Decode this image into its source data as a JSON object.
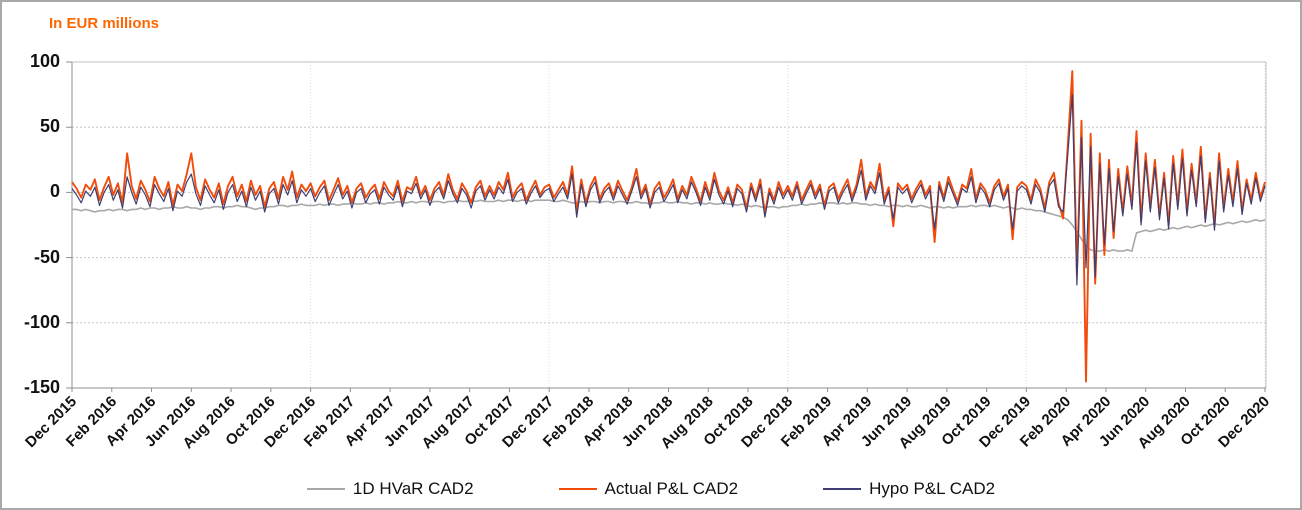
{
  "panel": {
    "title": "In EUR millions"
  },
  "legend": [
    {
      "label": "1D HVaR CAD2",
      "color": "#a8a8a8"
    },
    {
      "label": "Actual P&L CAD2",
      "color": "#f14c0c"
    },
    {
      "label": "Hypo P&L CAD2",
      "color": "#3e3e72"
    }
  ],
  "chart_data": {
    "type": "line",
    "title": "In EUR millions",
    "xlabel": "",
    "ylabel": "In EUR millions",
    "ylim": [
      -150,
      100
    ],
    "y_ticks": [
      100,
      50,
      0,
      -50,
      -100,
      -150
    ],
    "x_tick_labels": [
      "Dec 2015",
      "Feb 2016",
      "Apr 2016",
      "Jun 2016",
      "Aug 2016",
      "Oct 2016",
      "Dec 2016",
      "Feb 2017",
      "Apr 2017",
      "Jun 2017",
      "Aug 2017",
      "Oct 2017",
      "Dec 2017",
      "Feb 2018",
      "Apr 2018",
      "Jun 2018",
      "Aug 2018",
      "Oct 2018",
      "Dec 2018",
      "Feb 2019",
      "Apr 2019",
      "Jun 2019",
      "Aug 2019",
      "Oct 2019",
      "Dec 2019",
      "Feb 2020",
      "Apr 2020",
      "Jun 2020",
      "Aug 2020",
      "Oct 2020",
      "Dec 2020"
    ],
    "x_unit": "weekly samples from Dec 2015 to Dec 2020",
    "grid": "horizontal dotted gridlines every 50; faint dotted vertical gridlines each December",
    "legend_position": "bottom",
    "series": [
      {
        "name": "1D HVaR CAD2",
        "color": "#a8a8a8",
        "width": 1.6,
        "values": [
          -13,
          -13,
          -14,
          -13,
          -14,
          -15,
          -14,
          -14,
          -13,
          -14,
          -13,
          -13,
          -14,
          -13,
          -13,
          -12,
          -13,
          -12,
          -12,
          -13,
          -12,
          -12,
          -11,
          -12,
          -12,
          -11,
          -12,
          -12,
          -13,
          -12,
          -12,
          -11,
          -11,
          -12,
          -11,
          -11,
          -10,
          -11,
          -11,
          -12,
          -13,
          -12,
          -12,
          -11,
          -11,
          -10,
          -10,
          -11,
          -10,
          -10,
          -9,
          -10,
          -10,
          -10,
          -9,
          -10,
          -9,
          -9,
          -10,
          -9,
          -9,
          -8,
          -9,
          -9,
          -8,
          -9,
          -8,
          -8,
          -9,
          -8,
          -8,
          -7,
          -8,
          -8,
          -7,
          -8,
          -7,
          -7,
          -8,
          -7,
          -7,
          -8,
          -7,
          -7,
          -6,
          -7,
          -7,
          -6,
          -7,
          -6,
          -7,
          -7,
          -7,
          -6,
          -7,
          -6,
          -6,
          -7,
          -6,
          -6,
          -7,
          -6,
          -6,
          -6,
          -6,
          -7,
          -7,
          -6,
          -7,
          -8,
          -8,
          -7,
          -8,
          -7,
          -7,
          -8,
          -7,
          -7,
          -8,
          -7,
          -7,
          -8,
          -8,
          -7,
          -8,
          -8,
          -9,
          -8,
          -8,
          -7,
          -8,
          -8,
          -7,
          -8,
          -8,
          -9,
          -8,
          -8,
          -9,
          -8,
          -9,
          -9,
          -8,
          -9,
          -9,
          -10,
          -9,
          -10,
          -11,
          -10,
          -11,
          -12,
          -11,
          -11,
          -12,
          -11,
          -11,
          -10,
          -10,
          -9,
          -10,
          -9,
          -9,
          -8,
          -9,
          -8,
          -8,
          -9,
          -8,
          -9,
          -8,
          -8,
          -9,
          -9,
          -10,
          -9,
          -10,
          -10,
          -11,
          -10,
          -10,
          -11,
          -10,
          -11,
          -11,
          -10,
          -11,
          -12,
          -11,
          -11,
          -12,
          -11,
          -12,
          -11,
          -11,
          -11,
          -10,
          -11,
          -10,
          -10,
          -11,
          -10,
          -11,
          -12,
          -11,
          -12,
          -13,
          -12,
          -13,
          -13,
          -14,
          -14,
          -15,
          -16,
          -17,
          -18,
          -19,
          -21,
          -25,
          -30,
          -36,
          -41,
          -44,
          -45,
          -45,
          -44,
          -45,
          -44,
          -45,
          -45,
          -44,
          -45,
          -31,
          -30,
          -29,
          -30,
          -29,
          -28,
          -29,
          -28,
          -27,
          -28,
          -27,
          -26,
          -27,
          -26,
          -25,
          -26,
          -25,
          -24,
          -25,
          -24,
          -23,
          -24,
          -23,
          -22,
          -23,
          -22,
          -21,
          -22,
          -21
        ]
      },
      {
        "name": "Actual P&L CAD2",
        "color": "#f14c0c",
        "width": 1.9,
        "values": [
          8,
          3,
          -4,
          6,
          2,
          10,
          -6,
          4,
          12,
          -2,
          7,
          -8,
          30,
          5,
          -5,
          9,
          2,
          -7,
          12,
          3,
          -3,
          8,
          -10,
          6,
          1,
          14,
          30,
          4,
          -6,
          10,
          2,
          -4,
          7,
          -9,
          5,
          12,
          -3,
          6,
          -7,
          9,
          -2,
          5,
          -11,
          3,
          8,
          -5,
          12,
          2,
          16,
          -4,
          6,
          1,
          7,
          -3,
          4,
          9,
          -6,
          2,
          11,
          -2,
          5,
          -8,
          3,
          7,
          -4,
          2,
          6,
          -5,
          8,
          1,
          -3,
          9,
          -7,
          4,
          2,
          12,
          -2,
          5,
          -6,
          3,
          8,
          -2,
          14,
          2,
          -5,
          7,
          1,
          -8,
          4,
          9,
          -3,
          5,
          -2,
          8,
          2,
          15,
          -4,
          3,
          7,
          -6,
          2,
          9,
          -2,
          4,
          6,
          -4,
          2,
          8,
          -2,
          20,
          -15,
          10,
          -8,
          5,
          12,
          -5,
          3,
          7,
          -3,
          9,
          1,
          -6,
          4,
          18,
          -2,
          6,
          -9,
          3,
          8,
          -4,
          2,
          10,
          -5,
          5,
          -2,
          12,
          3,
          -7,
          8,
          -3,
          15,
          1,
          -6,
          4,
          -8,
          6,
          2,
          -12,
          7,
          -4,
          10,
          -16,
          3,
          -6,
          8,
          -2,
          5,
          -3,
          8,
          -6,
          2,
          9,
          -2,
          6,
          -10,
          4,
          7,
          -5,
          3,
          10,
          -4,
          6,
          25,
          -3,
          8,
          2,
          22,
          -6,
          4,
          -26,
          7,
          2,
          6,
          -5,
          3,
          9,
          -2,
          5,
          -38,
          8,
          -4,
          12,
          2,
          -7,
          6,
          3,
          18,
          -5,
          7,
          2,
          -8,
          5,
          10,
          -3,
          6,
          -36,
          4,
          8,
          5,
          -6,
          10,
          3,
          -12,
          8,
          15,
          -8,
          -20,
          35,
          93,
          -63,
          55,
          -145,
          45,
          -70,
          30,
          -48,
          25,
          -35,
          18,
          -15,
          20,
          -10,
          47,
          -22,
          30,
          -12,
          25,
          -18,
          15,
          -25,
          28,
          -10,
          33,
          -15,
          22,
          -8,
          35,
          -20,
          15,
          -26,
          30,
          -12,
          18,
          -8,
          24,
          -14,
          10,
          -6,
          15,
          -4,
          8
        ]
      },
      {
        "name": "Hypo P&L CAD2",
        "color": "#3e3e72",
        "width": 1.2,
        "values": [
          3,
          -2,
          -8,
          1,
          -3,
          4,
          -10,
          0,
          6,
          -6,
          2,
          -12,
          12,
          0,
          -9,
          4,
          -2,
          -11,
          6,
          -1,
          -7,
          3,
          -14,
          1,
          -3,
          8,
          14,
          -1,
          -10,
          5,
          -2,
          -8,
          2,
          -13,
          0,
          6,
          -7,
          1,
          -11,
          4,
          -6,
          1,
          -15,
          -1,
          3,
          -9,
          6,
          -2,
          9,
          -8,
          2,
          -3,
          3,
          -7,
          0,
          5,
          -10,
          -2,
          6,
          -5,
          1,
          -12,
          0,
          3,
          -8,
          -1,
          2,
          -9,
          4,
          -2,
          -6,
          5,
          -11,
          1,
          -1,
          7,
          -5,
          2,
          -10,
          0,
          4,
          -5,
          9,
          -1,
          -8,
          3,
          -2,
          -12,
          1,
          5,
          -6,
          2,
          -5,
          4,
          -1,
          10,
          -7,
          0,
          3,
          -9,
          -1,
          5,
          -4,
          1,
          3,
          -7,
          -1,
          4,
          -5,
          14,
          -19,
          6,
          -11,
          2,
          8,
          -8,
          0,
          4,
          -6,
          5,
          -2,
          -9,
          1,
          12,
          -5,
          3,
          -12,
          0,
          4,
          -7,
          -1,
          6,
          -8,
          2,
          -5,
          8,
          0,
          -10,
          4,
          -6,
          10,
          -2,
          -9,
          1,
          -11,
          3,
          -1,
          -15,
          4,
          -7,
          6,
          -19,
          0,
          -9,
          4,
          -5,
          2,
          -6,
          5,
          -9,
          -1,
          6,
          -5,
          3,
          -13,
          1,
          4,
          -8,
          0,
          6,
          -7,
          3,
          17,
          -6,
          5,
          -1,
          15,
          -9,
          1,
          -20,
          4,
          -1,
          3,
          -8,
          0,
          6,
          -5,
          2,
          -28,
          5,
          -7,
          8,
          -1,
          -10,
          3,
          0,
          12,
          -8,
          4,
          -1,
          -11,
          2,
          7,
          -6,
          3,
          -28,
          1,
          5,
          2,
          -9,
          6,
          0,
          -15,
          5,
          10,
          -11,
          -15,
          28,
          75,
          -71,
          42,
          -58,
          35,
          -65,
          22,
          -40,
          18,
          -30,
          12,
          -18,
          14,
          -13,
          38,
          -25,
          24,
          -15,
          19,
          -21,
          11,
          -28,
          22,
          -13,
          26,
          -18,
          17,
          -11,
          28,
          -23,
          11,
          -29,
          24,
          -15,
          13,
          -11,
          18,
          -17,
          7,
          -9,
          11,
          -7,
          5
        ]
      }
    ]
  }
}
